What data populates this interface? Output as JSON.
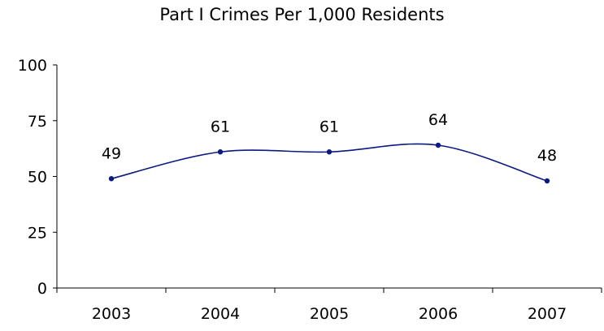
{
  "chart_data": {
    "type": "line",
    "title": "Part I Crimes Per 1,000 Residents",
    "categories": [
      "2003",
      "2004",
      "2005",
      "2006",
      "2007"
    ],
    "series": [
      {
        "values": [
          49,
          61,
          61,
          64,
          48
        ],
        "data_labels": [
          "49",
          "61",
          "61",
          "64",
          "48"
        ]
      }
    ],
    "ylim": [
      0,
      100
    ],
    "yticks": [
      "0",
      "25",
      "50",
      "75",
      "100"
    ],
    "smoothed": true,
    "grid": false,
    "legend": "none",
    "colors": {
      "series": "#0a1a80",
      "axis": "#000000"
    }
  }
}
